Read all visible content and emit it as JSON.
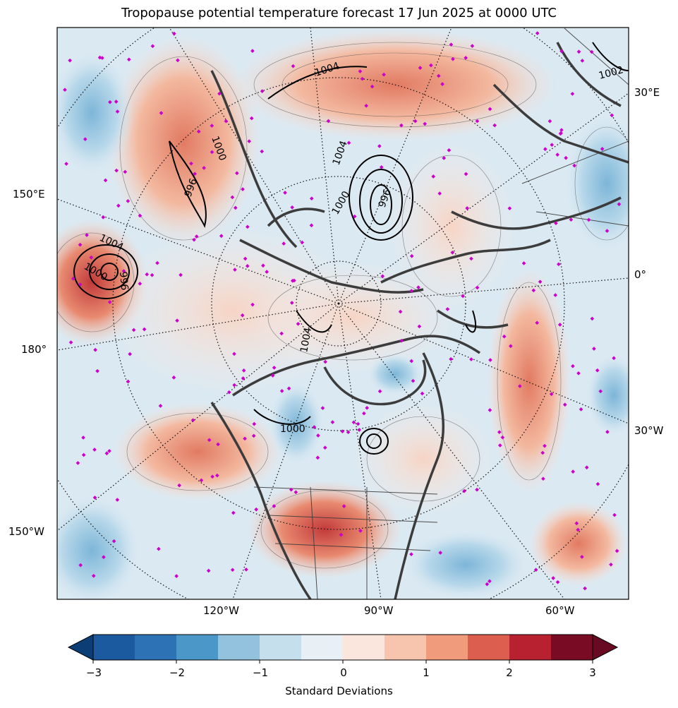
{
  "title": "Tropopause potential temperature forecast 17 Jun 2025 at 0000 UTC",
  "map": {
    "projection": "north-polar-stereographic",
    "longitude_labels_left": [
      "150°E",
      "180°",
      "150°W"
    ],
    "longitude_labels_right": [
      "30°E",
      "0°",
      "30°W"
    ],
    "longitude_labels_bottom": [
      "120°W",
      "90°W",
      "60°W"
    ],
    "contour_labels": [
      "1004",
      "1004",
      "1000",
      "1004",
      "1000",
      "996",
      "1004",
      "996",
      "996",
      "1000",
      "1000",
      "1002"
    ],
    "contour_color": "#000000",
    "coastline_color": "#3c3c3c",
    "station_marker_color": "#cc00cc"
  },
  "colorbar": {
    "label": "Standard Deviations",
    "ticks": [
      "−3",
      "−2",
      "−1",
      "0",
      "1",
      "2",
      "3"
    ],
    "extend": "both",
    "colors": [
      "#0c3d74",
      "#1b5a9f",
      "#2c72b4",
      "#4b97c7",
      "#92c2de",
      "#c5dfec",
      "#e8f0f6",
      "#fbe6dd",
      "#f7c5ad",
      "#f09c7c",
      "#db5e4f",
      "#b82230",
      "#7a0b24",
      "#670a22"
    ]
  }
}
